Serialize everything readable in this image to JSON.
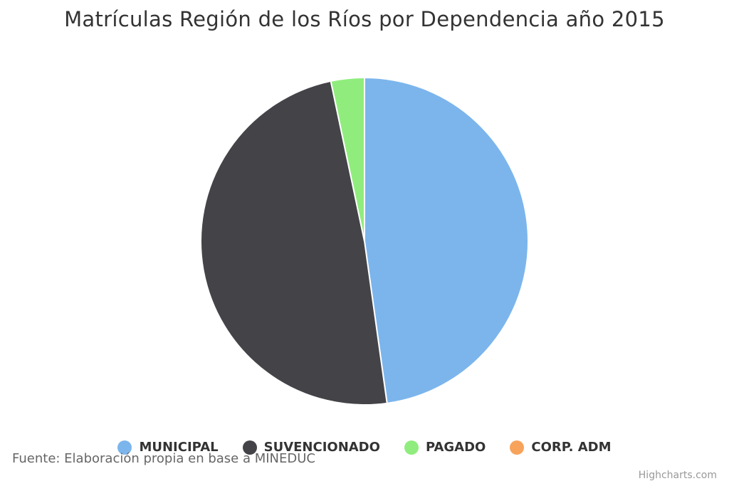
{
  "chart_data": {
    "type": "pie",
    "title": "Matrículas Región de los Ríos por Dependencia año 2015",
    "categories": [
      "MUNICIPAL",
      "SUVENCIONADO",
      "PAGADO",
      "CORP. ADM"
    ],
    "values": [
      47.8,
      48.9,
      3.3,
      0
    ],
    "colors": [
      "#7cb5ec",
      "#434348",
      "#90ed7d",
      "#f7a35c"
    ],
    "legend_position": "bottom-center"
  },
  "source": "Fuente: Elaboración propia en base a MINEDUC",
  "credits": "Highcharts.com"
}
